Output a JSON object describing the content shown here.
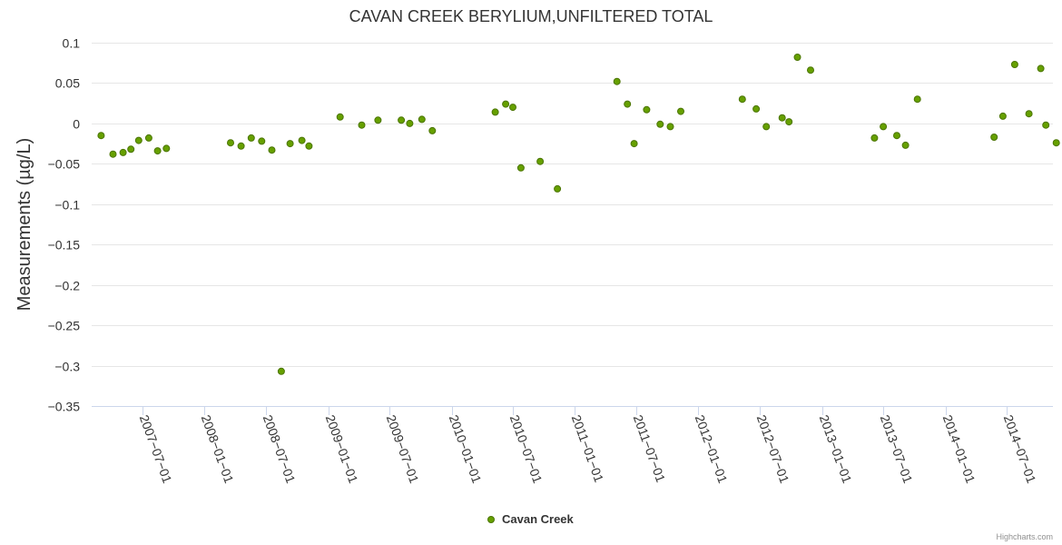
{
  "chart_data": {
    "type": "scatter",
    "title": "CAVAN CREEK BERYLIUM,UNFILTERED TOTAL",
    "xlabel": "",
    "ylabel": "Measurements (µg/L)",
    "ylim": [
      -0.35,
      0.1
    ],
    "y_ticks": [
      0.1,
      0.05,
      0,
      -0.05,
      -0.1,
      -0.15,
      -0.2,
      -0.25,
      -0.3,
      -0.35
    ],
    "y_tick_labels": [
      "0.1",
      "0.05",
      "0",
      "−0.05",
      "−0.1",
      "−0.15",
      "−0.2",
      "−0.25",
      "−0.3",
      "−0.35"
    ],
    "x_range": [
      "2007-02-01",
      "2014-11-15"
    ],
    "x_ticks": [
      "2007-07-01",
      "2008-01-01",
      "2008-07-01",
      "2009-01-01",
      "2009-07-01",
      "2010-01-01",
      "2010-07-01",
      "2011-01-01",
      "2011-07-01",
      "2012-01-01",
      "2012-07-01",
      "2013-01-01",
      "2013-07-01",
      "2014-01-01",
      "2014-07-01"
    ],
    "grid": true,
    "legend_position": "bottom-center",
    "colors": {
      "series": "#66a000",
      "marker_outline": "#4a7400"
    },
    "series": [
      {
        "name": "Cavan Creek",
        "points": [
          [
            "2007-03-01",
            -0.015
          ],
          [
            "2007-04-05",
            -0.038
          ],
          [
            "2007-05-05",
            -0.036
          ],
          [
            "2007-05-28",
            -0.032
          ],
          [
            "2007-06-20",
            -0.021
          ],
          [
            "2007-07-20",
            -0.018
          ],
          [
            "2007-08-15",
            -0.034
          ],
          [
            "2007-09-10",
            -0.031
          ],
          [
            "2008-03-18",
            -0.024
          ],
          [
            "2008-04-18",
            -0.028
          ],
          [
            "2008-05-18",
            -0.018
          ],
          [
            "2008-06-18",
            -0.022
          ],
          [
            "2008-07-18",
            -0.033
          ],
          [
            "2008-08-15",
            -0.307
          ],
          [
            "2008-09-10",
            -0.025
          ],
          [
            "2008-10-15",
            -0.021
          ],
          [
            "2008-11-05",
            -0.028
          ],
          [
            "2009-02-05",
            0.008
          ],
          [
            "2009-04-10",
            -0.002
          ],
          [
            "2009-05-28",
            0.004
          ],
          [
            "2009-08-05",
            0.004
          ],
          [
            "2009-08-30",
            0.0
          ],
          [
            "2009-10-05",
            0.005
          ],
          [
            "2009-11-05",
            -0.009
          ],
          [
            "2010-05-10",
            0.014
          ],
          [
            "2010-06-10",
            0.024
          ],
          [
            "2010-07-01",
            0.02
          ],
          [
            "2010-07-25",
            -0.055
          ],
          [
            "2010-09-20",
            -0.047
          ],
          [
            "2010-11-10",
            -0.081
          ],
          [
            "2011-05-05",
            0.052
          ],
          [
            "2011-06-05",
            0.024
          ],
          [
            "2011-06-25",
            -0.025
          ],
          [
            "2011-08-01",
            0.017
          ],
          [
            "2011-09-10",
            -0.001
          ],
          [
            "2011-10-10",
            -0.004
          ],
          [
            "2011-11-10",
            0.015
          ],
          [
            "2012-05-10",
            0.03
          ],
          [
            "2012-06-20",
            0.018
          ],
          [
            "2012-07-20",
            -0.004
          ],
          [
            "2012-09-05",
            0.007
          ],
          [
            "2012-09-25",
            0.002
          ],
          [
            "2012-10-20",
            0.082
          ],
          [
            "2012-11-28",
            0.066
          ],
          [
            "2013-06-05",
            -0.018
          ],
          [
            "2013-07-01",
            -0.004
          ],
          [
            "2013-08-10",
            -0.015
          ],
          [
            "2013-09-05",
            -0.027
          ],
          [
            "2013-10-10",
            0.03
          ],
          [
            "2014-05-25",
            -0.017
          ],
          [
            "2014-06-20",
            0.009
          ],
          [
            "2014-07-25",
            0.073
          ],
          [
            "2014-09-05",
            0.012
          ],
          [
            "2014-10-10",
            0.068
          ],
          [
            "2014-10-25",
            -0.002
          ],
          [
            "2014-11-25",
            -0.024
          ]
        ]
      }
    ]
  },
  "credits": "Highcharts.com"
}
